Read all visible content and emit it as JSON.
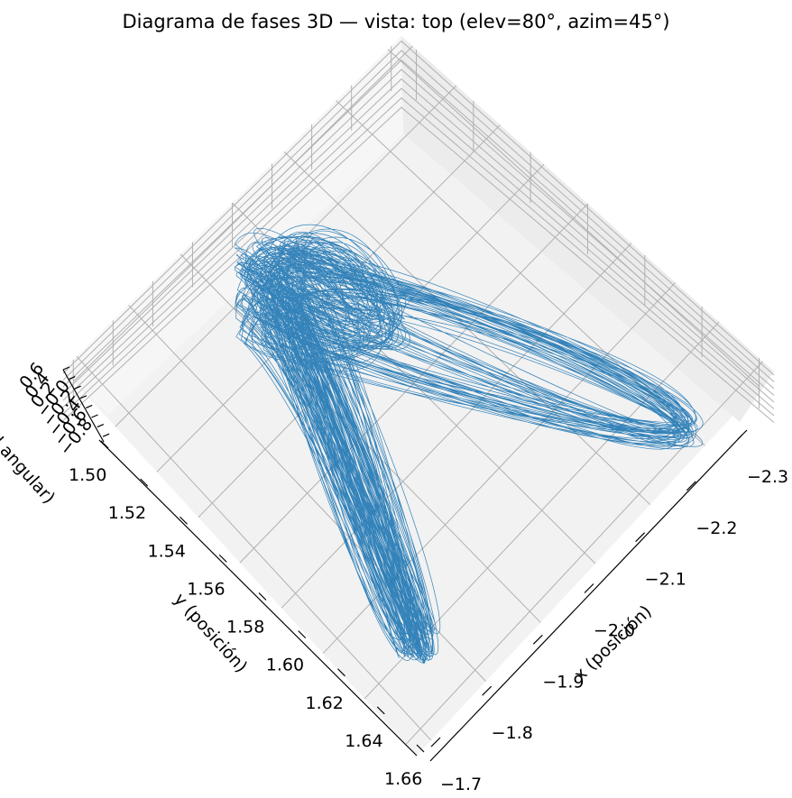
{
  "chart_data": {
    "type": "line",
    "projection": "3d",
    "title": "Diagrama de fases 3D — vista: top (elev=80°, azim=45°)",
    "xlabel": "x (posición)",
    "ylabel": "y (posición)",
    "zlabel": "velocidad angular)",
    "xlim": [
      -2.32,
      -1.68
    ],
    "ylim": [
      1.49,
      1.665
    ],
    "zlim": [
      -0.8,
      0.6
    ],
    "x_ticks": [
      "−2.3",
      "−2.2",
      "−2.1",
      "−2.0",
      "−1.9",
      "−1.8",
      "−1.7"
    ],
    "y_ticks": [
      "1.50",
      "1.52",
      "1.54",
      "1.56",
      "1.58",
      "1.60",
      "1.62",
      "1.64",
      "1.66"
    ],
    "z_ticks": [
      "0.6",
      "0.4",
      "0.2",
      "−0.0",
      "−0.2",
      "−0.4",
      "−0.6",
      "−0.8"
    ],
    "grid": true,
    "line_color": "#1f77b4",
    "pane_color": "#f2f2f2",
    "series": [
      {
        "lobe": "center",
        "x": -2.02,
        "y": 1.528,
        "z": 0.0
      },
      {
        "lobe": "upper-right",
        "x": -2.27,
        "y": 1.535,
        "z": -0.2
      },
      {
        "lobe": "lower",
        "x": -2.04,
        "y": 1.625,
        "z": -0.3
      }
    ]
  }
}
